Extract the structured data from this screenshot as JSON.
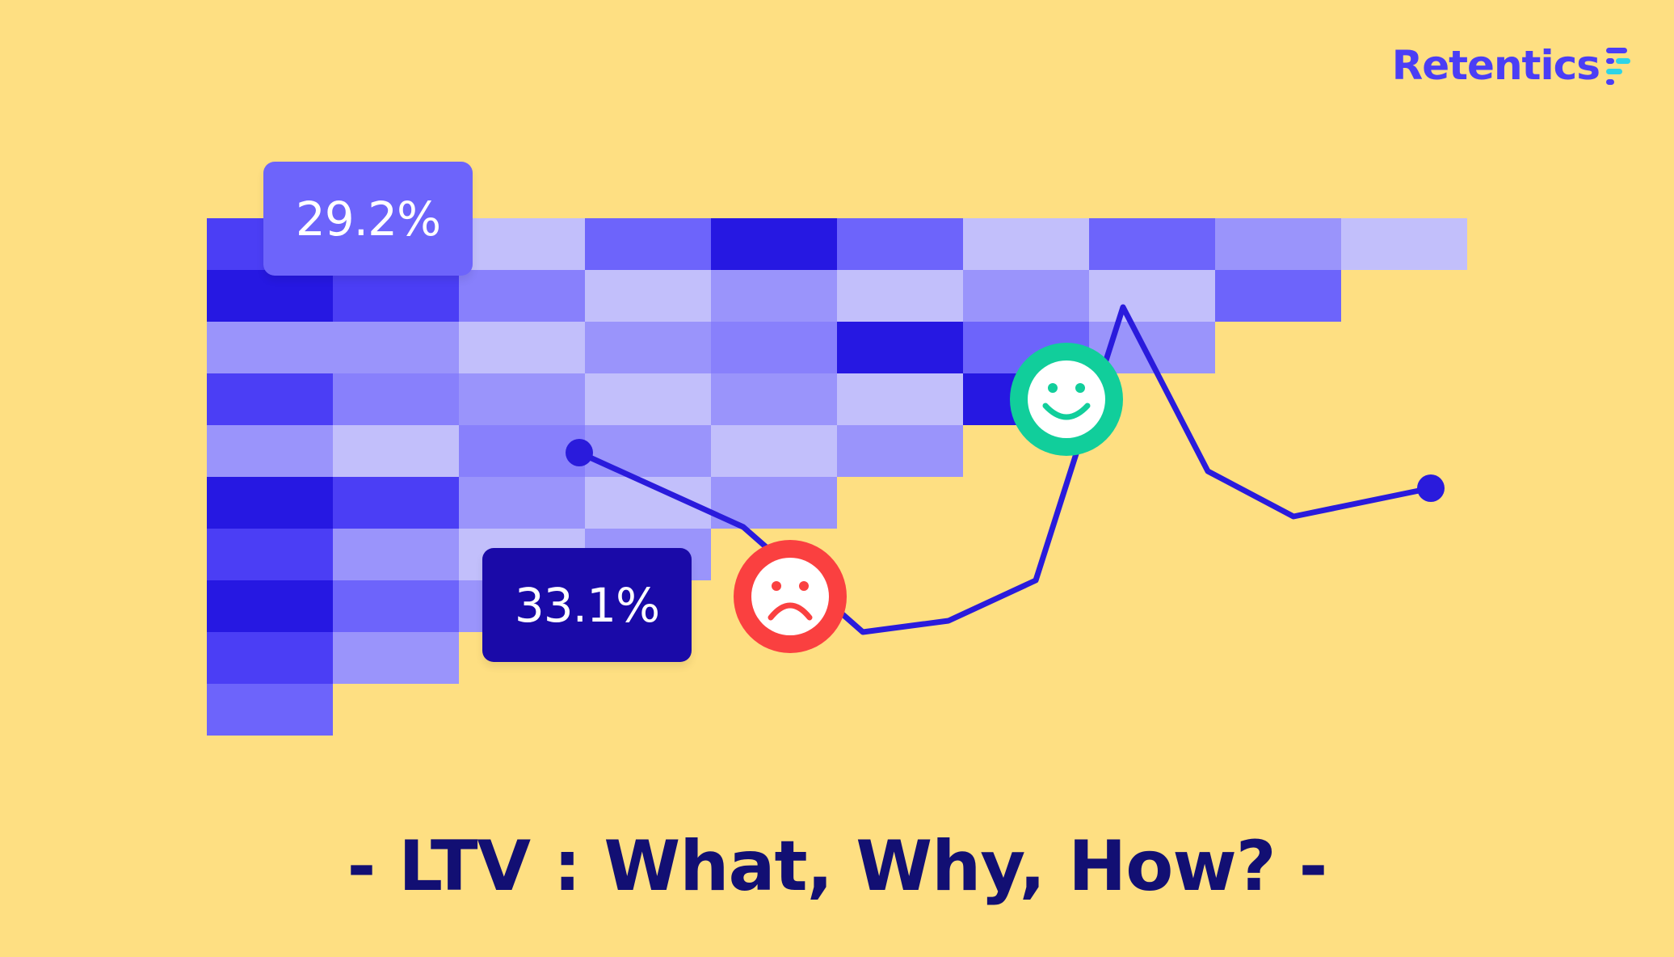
{
  "brand": {
    "name": "Retentics",
    "color": "#4B3EF5",
    "mark_colors": [
      "#4B3EF5",
      "#2DD4E6"
    ]
  },
  "colors": {
    "background": "#FEDF82",
    "line": "#2A1BDC",
    "headline": "#120F73",
    "happy": "#11CE9B",
    "sad": "#FA4040",
    "heatmap_shades": [
      "#C2BFFB",
      "#9A94FB",
      "#8880FC",
      "#6D64FB",
      "#4B3EF5",
      "#2618E2"
    ]
  },
  "heatmap": {
    "rows": [
      [
        4,
        3,
        0,
        3,
        5,
        3,
        0,
        3,
        1,
        0
      ],
      [
        5,
        4,
        2,
        0,
        1,
        0,
        1,
        0,
        3
      ],
      [
        1,
        1,
        0,
        1,
        2,
        5,
        3,
        1
      ],
      [
        4,
        2,
        1,
        0,
        1,
        0,
        5
      ],
      [
        1,
        0,
        2,
        1,
        0,
        1
      ],
      [
        5,
        4,
        1,
        0,
        1
      ],
      [
        4,
        1,
        0,
        1
      ],
      [
        5,
        3,
        1
      ],
      [
        4,
        1
      ],
      [
        3
      ]
    ]
  },
  "badges": {
    "top": "29.2%",
    "bottom": "33.1%"
  },
  "icons": {
    "sad": "sad-face-icon",
    "happy": "smiley-face-icon",
    "brand": "retentics-logo-icon"
  },
  "headline": "- LTV : What, Why, How? -"
}
